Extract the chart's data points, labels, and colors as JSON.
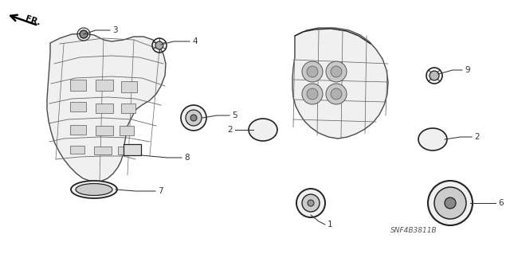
{
  "bg_color": "#ffffff",
  "line_color": "#4a4a4a",
  "part_number_ref": "SNF4B3811B",
  "fr_label": "FR.",
  "label_color": "#333333",
  "label_fontsize": 7.5,
  "ref_fontsize": 6.5,
  "panel_fill": "#f0f0f0",
  "grommet_line_color": "#555555"
}
